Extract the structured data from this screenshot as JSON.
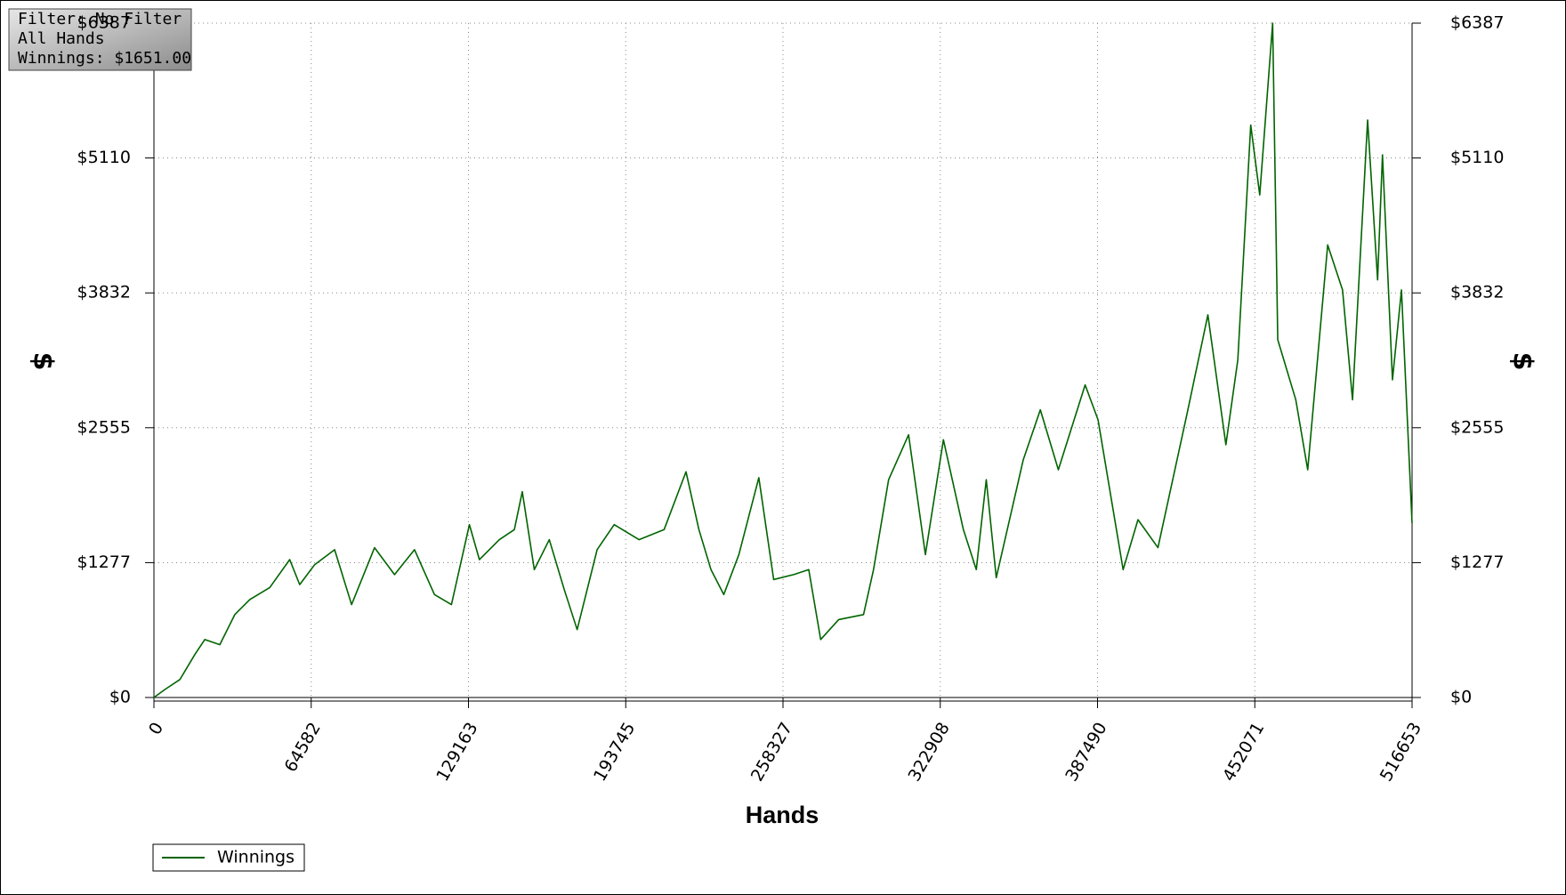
{
  "chart_data": {
    "type": "line",
    "annotations": [
      "Filter: No Filter",
      "All Hands",
      "Winnings: $1651.00"
    ],
    "x_label": "Hands",
    "y_label": "$",
    "y2_label": "$",
    "x": [
      0,
      4510,
      10660,
      16800,
      20900,
      27060,
      33200,
      39360,
      47560,
      55760,
      59860,
      66000,
      74200,
      81170,
      90600,
      98800,
      107000,
      115200,
      122170,
      129550,
      133650,
      141850,
      148000,
      151270,
      156200,
      162350,
      168500,
      173800,
      182000,
      189000,
      199200,
      209500,
      218500,
      223800,
      228750,
      234000,
      240200,
      248400,
      254500,
      262700,
      268900,
      273800,
      281200,
      291400,
      295500,
      301700,
      309900,
      316800,
      324200,
      332400,
      337700,
      341800,
      345900,
      357000,
      364000,
      371400,
      382400,
      387700,
      398000,
      404100,
      412300,
      424600,
      432800,
      440200,
      445100,
      450400,
      454100,
      459400,
      461500,
      468900,
      473800,
      482000,
      488100,
      492200,
      498400,
      502500,
      504500,
      508600,
      512300,
      516653
    ],
    "series": [
      {
        "name": "Winnings",
        "color": "#006400",
        "values": [
          0,
          76,
          170,
          407,
          549,
          500,
          785,
          927,
          1041,
          1306,
          1069,
          1258,
          1400,
          880,
          1419,
          1164,
          1400,
          975,
          880,
          1637,
          1306,
          1495,
          1590,
          1949,
          1211,
          1495,
          1022,
          643,
          1400,
          1637,
          1495,
          1590,
          2138,
          1590,
          1211,
          975,
          1353,
          2082,
          1117,
          1164,
          1211,
          549,
          738,
          785,
          1211,
          2063,
          2488,
          1353,
          2441,
          1590,
          1211,
          2063,
          1135,
          2252,
          2725,
          2157,
          2961,
          2630,
          1211,
          1684,
          1419,
          2725,
          3624,
          2394,
          3198,
          5422,
          4760,
          6387,
          3388,
          2820,
          2157,
          4286,
          3860,
          2820,
          5469,
          3955,
          5139,
          3009,
          3860,
          1651
        ]
      }
    ],
    "xlim": [
      0,
      516653
    ],
    "xticks": [
      0,
      64582,
      129163,
      193745,
      258327,
      322908,
      387490,
      452071,
      516653
    ],
    "ylim": [
      0,
      6387
    ],
    "yticks": [
      {
        "value": 0,
        "label": "$0"
      },
      {
        "value": 1277,
        "label": "$1277"
      },
      {
        "value": 2555,
        "label": "$2555"
      },
      {
        "value": 3832,
        "label": "$3832"
      },
      {
        "value": 5110,
        "label": "$5110"
      },
      {
        "value": 6387,
        "label": "$6387"
      }
    ],
    "grid": true
  }
}
